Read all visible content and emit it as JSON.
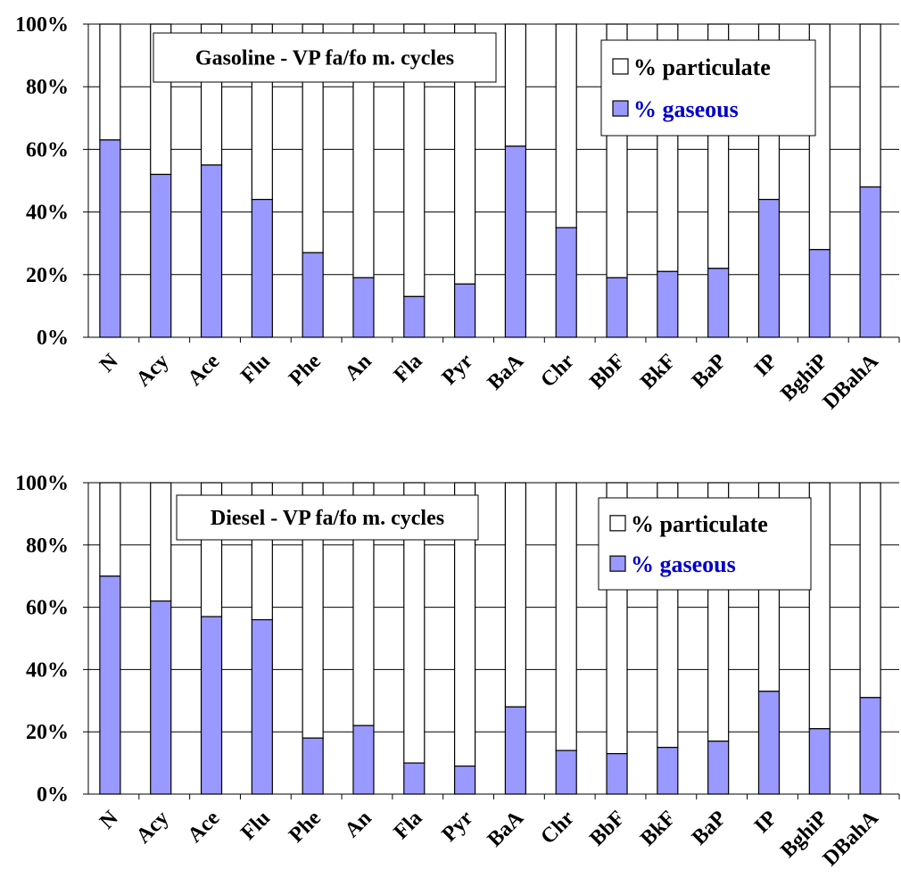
{
  "colors": {
    "gaseous": "#9999ff",
    "particulate": "#ffffff",
    "gaseous_text": "#0000cc",
    "line": "#000000"
  },
  "chart_data": [
    {
      "type": "bar",
      "stacked": true,
      "title": "Gasoline -  VP fa/fo m. cycles",
      "categories": [
        "N",
        "Acy",
        "Ace",
        "Flu",
        "Phe",
        "An",
        "Fla",
        "Pyr",
        "BaA",
        "Chr",
        "BbF",
        "BkF",
        "BaP",
        "IP",
        "BghiP",
        "DBahA"
      ],
      "ylim": [
        0,
        100
      ],
      "yticks": [
        "0%",
        "20%",
        "40%",
        "60%",
        "80%",
        "100%"
      ],
      "grid": true,
      "legend_position": "top-right",
      "series": [
        {
          "name": "% gaseous",
          "values": [
            63,
            52,
            55,
            44,
            27,
            19,
            13,
            17,
            61,
            35,
            19,
            21,
            22,
            44,
            28,
            48
          ]
        },
        {
          "name": "% particulate",
          "values": [
            37,
            48,
            45,
            56,
            73,
            81,
            87,
            83,
            39,
            65,
            81,
            79,
            78,
            56,
            72,
            52
          ]
        }
      ]
    },
    {
      "type": "bar",
      "stacked": true,
      "title": "Diesel - VP fa/fo m. cycles",
      "categories": [
        "N",
        "Acy",
        "Ace",
        "Flu",
        "Phe",
        "An",
        "Fla",
        "Pyr",
        "BaA",
        "Chr",
        "BbF",
        "BkF",
        "BaP",
        "IP",
        "BghiP",
        "DBahA"
      ],
      "ylim": [
        0,
        100
      ],
      "yticks": [
        "0%",
        "20%",
        "40%",
        "60%",
        "80%",
        "100%"
      ],
      "grid": true,
      "legend_position": "top-right",
      "series": [
        {
          "name": "% gaseous",
          "values": [
            70,
            62,
            57,
            56,
            18,
            22,
            10,
            9,
            28,
            14,
            13,
            15,
            17,
            33,
            21,
            31
          ]
        },
        {
          "name": "% particulate",
          "values": [
            30,
            38,
            43,
            44,
            82,
            78,
            90,
            91,
            72,
            86,
            87,
            85,
            83,
            67,
            79,
            69
          ]
        }
      ]
    }
  ]
}
